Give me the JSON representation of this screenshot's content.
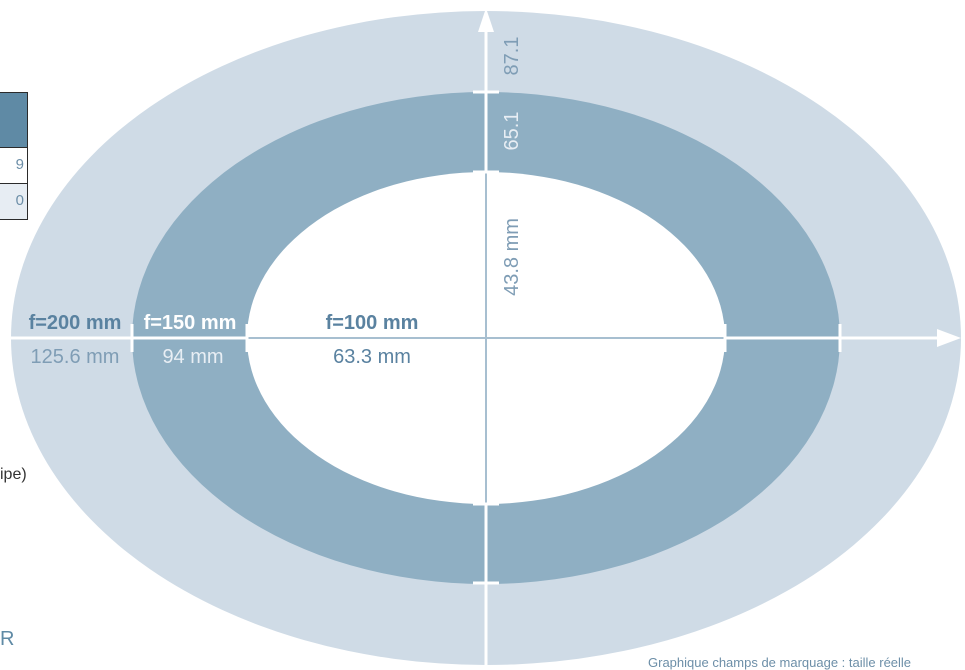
{
  "colors": {
    "outer_field": "#cfdbe6",
    "middle_field": "#8fafc3",
    "inner_field": "#ffffff",
    "axis": "#ffffff",
    "inner_axis": "#a7bfd0",
    "label_dark": "#5a82a0",
    "label_light": "#7f9db5",
    "table_header": "#5f8aa5"
  },
  "fields": [
    {
      "focal": "f=200 mm",
      "horizontal": "125.6 mm",
      "vertical": "87.1"
    },
    {
      "focal": "f=150 mm",
      "horizontal": "94 mm",
      "vertical": "65.1"
    },
    {
      "focal": "f=100 mm",
      "horizontal": "63.3 mm",
      "vertical": "43.8 mm"
    }
  ],
  "left_table": {
    "rows": [
      "9",
      "0"
    ]
  },
  "side_texts": {
    "partial_parenthetical": "ipe)",
    "partial_letter": "R"
  },
  "caption": "Graphique champs de marquage : taille réelle"
}
